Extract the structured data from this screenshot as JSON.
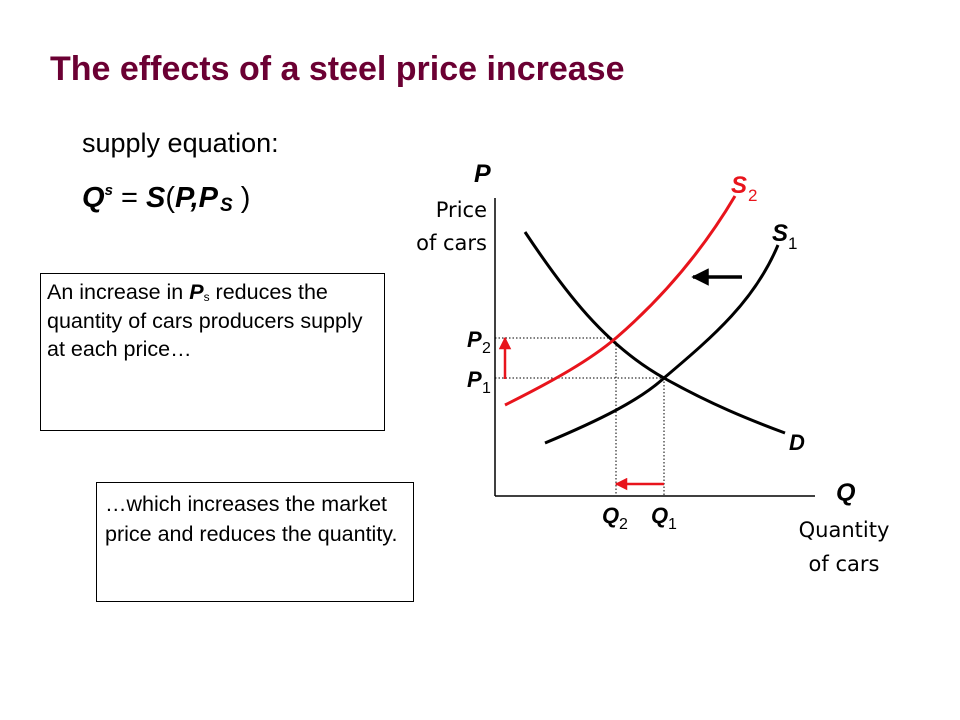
{
  "slide": {
    "title": "The effects of a steel price increase",
    "supply_label": "supply equation:",
    "equation": {
      "q": "Q",
      "q_sup": "s",
      "equals": " = ",
      "s": "S",
      "open": "(",
      "p": "P",
      "comma": ",",
      "ps_p": "P",
      "ps_sub": "S",
      "close": " )"
    },
    "box1": {
      "before": "An increase in ",
      "var": "P",
      "var_sub": "s",
      "after": " reduces the quantity of cars producers supply at each price…"
    },
    "box2": "…which increases the market price and reduces the quantity."
  },
  "diagram": {
    "y_axis_symbol": "P",
    "y_axis_label_line1": "Price",
    "y_axis_label_line2": "of cars",
    "x_axis_symbol": "Q",
    "x_axis_label_line1": "Quantity",
    "x_axis_label_line2": "of cars",
    "curves": {
      "s2": {
        "letter": "S",
        "sub": "2",
        "color": "#e8141c"
      },
      "s1": {
        "letter": "S",
        "sub": "1",
        "color": "#000000"
      },
      "d": {
        "letter": "D",
        "color": "#000000"
      }
    },
    "prices": {
      "p2_letter": "P",
      "p2_sub": "2",
      "p1_letter": "P",
      "p1_sub": "1"
    },
    "quantities": {
      "q2_letter": "Q",
      "q2_sub": "2",
      "q1_letter": "Q",
      "q1_sub": "1"
    },
    "arrow_color": "#e8141c"
  }
}
